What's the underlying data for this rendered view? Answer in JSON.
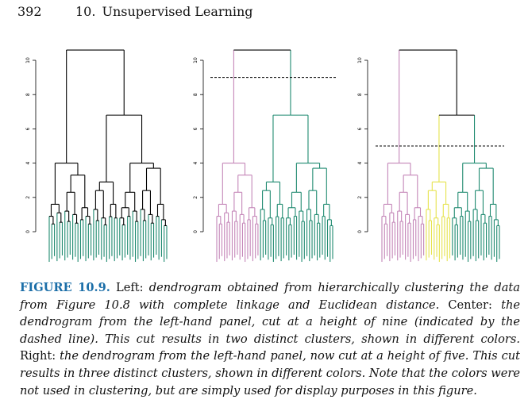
{
  "header": {
    "page_number": "392",
    "chapter_number": "10.",
    "chapter_title": "Unsupervised Learning"
  },
  "colors": {
    "green": "#1f8a70",
    "pink": "#c486b8",
    "yellow": "#e6e34d",
    "link": "#000000",
    "caption_label": "#1b6ea8"
  },
  "chart_data": [
    {
      "type": "dendrogram",
      "panel": "left",
      "ylim": [
        0,
        10.5
      ],
      "yticks": [
        "0",
        "2",
        "4",
        "6",
        "8",
        "10"
      ],
      "cut_height": null,
      "leaf_colors": [
        "green"
      ]
    },
    {
      "type": "dendrogram",
      "panel": "center",
      "ylim": [
        0,
        10.5
      ],
      "yticks": [
        "0",
        "2",
        "4",
        "6",
        "8",
        "10"
      ],
      "cut_height": 9,
      "leaf_colors": [
        "pink",
        "green"
      ]
    },
    {
      "type": "dendrogram",
      "panel": "right",
      "ylim": [
        0,
        10.5
      ],
      "yticks": [
        "0",
        "2",
        "4",
        "6",
        "8",
        "10"
      ],
      "cut_height": 5,
      "leaf_colors": [
        "pink",
        "yellow",
        "green"
      ]
    }
  ],
  "caption": {
    "label": "FIGURE 10.9.",
    "left_word": "Left:",
    "left_text": "dendrogram obtained from hierarchically clustering the data from Figure 10.8 with complete linkage and Euclidean distance.",
    "center_word": "Center:",
    "center_text": "the dendrogram from the left-hand panel, cut at a height of nine (indicated by the dashed line). This cut results in two distinct clusters, shown in different colors.",
    "right_word": "Right:",
    "right_text": "the dendrogram from the left-hand panel, now cut at a height of five. This cut results in three distinct clusters, shown in different colors. Note that the colors were not used in clustering, but are simply used for display purposes in this figure."
  }
}
